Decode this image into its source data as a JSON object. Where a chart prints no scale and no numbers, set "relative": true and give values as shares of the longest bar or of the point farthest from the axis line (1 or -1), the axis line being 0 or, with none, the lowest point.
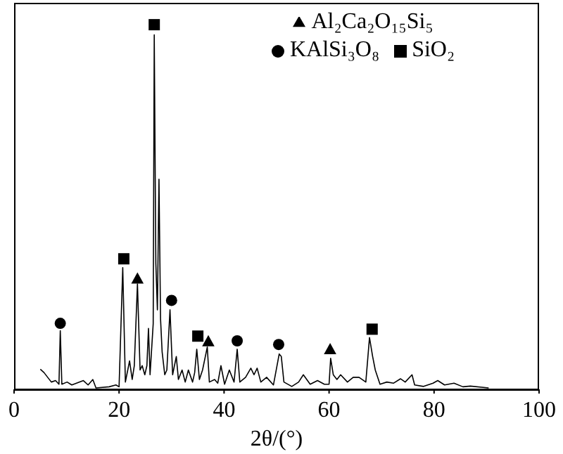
{
  "chart_data": {
    "type": "line",
    "relative": true,
    "xlabel": "2θ/(°)",
    "xlim": [
      0,
      100
    ],
    "xticks": [
      0,
      20,
      40,
      60,
      80,
      100
    ],
    "legend": "top right",
    "grid": false,
    "series": [
      {
        "color": "#000000",
        "x": [
          5.0,
          5.7,
          7.1,
          7.9,
          8.55,
          8.8,
          9.1,
          10.1,
          11.0,
          13.2,
          14.1,
          15.0,
          15.6,
          18.1,
          19.4,
          20.0,
          20.7,
          21.2,
          22.0,
          22.5,
          22.9,
          23.5,
          24.0,
          24.4,
          24.9,
          25.3,
          25.6,
          25.9,
          26.5,
          26.7,
          27.0,
          27.3,
          27.6,
          27.9,
          28.2,
          28.7,
          29.1,
          29.7,
          30.2,
          30.9,
          31.3,
          32.0,
          32.6,
          33.2,
          34.0,
          34.4,
          34.8,
          35.3,
          35.9,
          36.8,
          37.2,
          38.2,
          38.8,
          39.4,
          40.1,
          41.0,
          41.9,
          42.5,
          43.0,
          44.1,
          45.1,
          45.7,
          46.3,
          47.0,
          48.1,
          49.4,
          50.5,
          50.9,
          51.4,
          52.9,
          54.2,
          55.1,
          56.4,
          57.8,
          59.1,
          60.0,
          60.3,
          60.8,
          61.5,
          62.2,
          63.5,
          64.6,
          65.7,
          67.0,
          67.7,
          68.3,
          68.8,
          69.7,
          71.0,
          72.3,
          73.6,
          74.5,
          75.8,
          76.3,
          78.0,
          79.8,
          80.7,
          82.0,
          83.8,
          85.5,
          86.9,
          90.4
        ],
        "values": [
          0.055,
          0.046,
          0.02,
          0.024,
          0.014,
          0.161,
          0.014,
          0.02,
          0.012,
          0.024,
          0.012,
          0.027,
          0.004,
          0.007,
          0.012,
          0.007,
          0.334,
          0.02,
          0.078,
          0.027,
          0.065,
          0.289,
          0.053,
          0.065,
          0.04,
          0.065,
          0.167,
          0.04,
          0.18,
          0.972,
          0.346,
          0.218,
          0.576,
          0.193,
          0.103,
          0.04,
          0.053,
          0.218,
          0.04,
          0.09,
          0.027,
          0.053,
          0.02,
          0.053,
          0.02,
          0.046,
          0.11,
          0.027,
          0.053,
          0.116,
          0.02,
          0.027,
          0.017,
          0.065,
          0.014,
          0.053,
          0.02,
          0.11,
          0.02,
          0.033,
          0.058,
          0.04,
          0.058,
          0.02,
          0.033,
          0.012,
          0.097,
          0.09,
          0.02,
          0.008,
          0.02,
          0.04,
          0.014,
          0.024,
          0.014,
          0.014,
          0.085,
          0.04,
          0.027,
          0.04,
          0.02,
          0.033,
          0.033,
          0.02,
          0.142,
          0.09,
          0.053,
          0.014,
          0.02,
          0.017,
          0.029,
          0.02,
          0.04,
          0.012,
          0.008,
          0.017,
          0.024,
          0.012,
          0.017,
          0.007,
          0.009,
          0.004
        ]
      },
      {
        "type": "scatter",
        "name": "SiO₂",
        "marker": "square",
        "color": "#000000",
        "x": [
          20.9,
          26.7,
          35.0,
          68.2
        ],
        "values": [
          0.358,
          1,
          0.146,
          0.165
        ]
      },
      {
        "type": "scatter",
        "name": "KAlSi₃O₈",
        "marker": "circle",
        "color": "#000000",
        "x": [
          8.8,
          30.0,
          42.5,
          50.4
        ],
        "values": [
          0.181,
          0.244,
          0.133,
          0.123
        ]
      },
      {
        "type": "scatter",
        "name": "Al₂Ca₂O₁₅Si₅",
        "marker": "triangle",
        "color": "#000000",
        "x": [
          23.5,
          37.0,
          60.2
        ],
        "values": [
          0.304,
          0.132,
          0.11
        ]
      }
    ]
  }
}
